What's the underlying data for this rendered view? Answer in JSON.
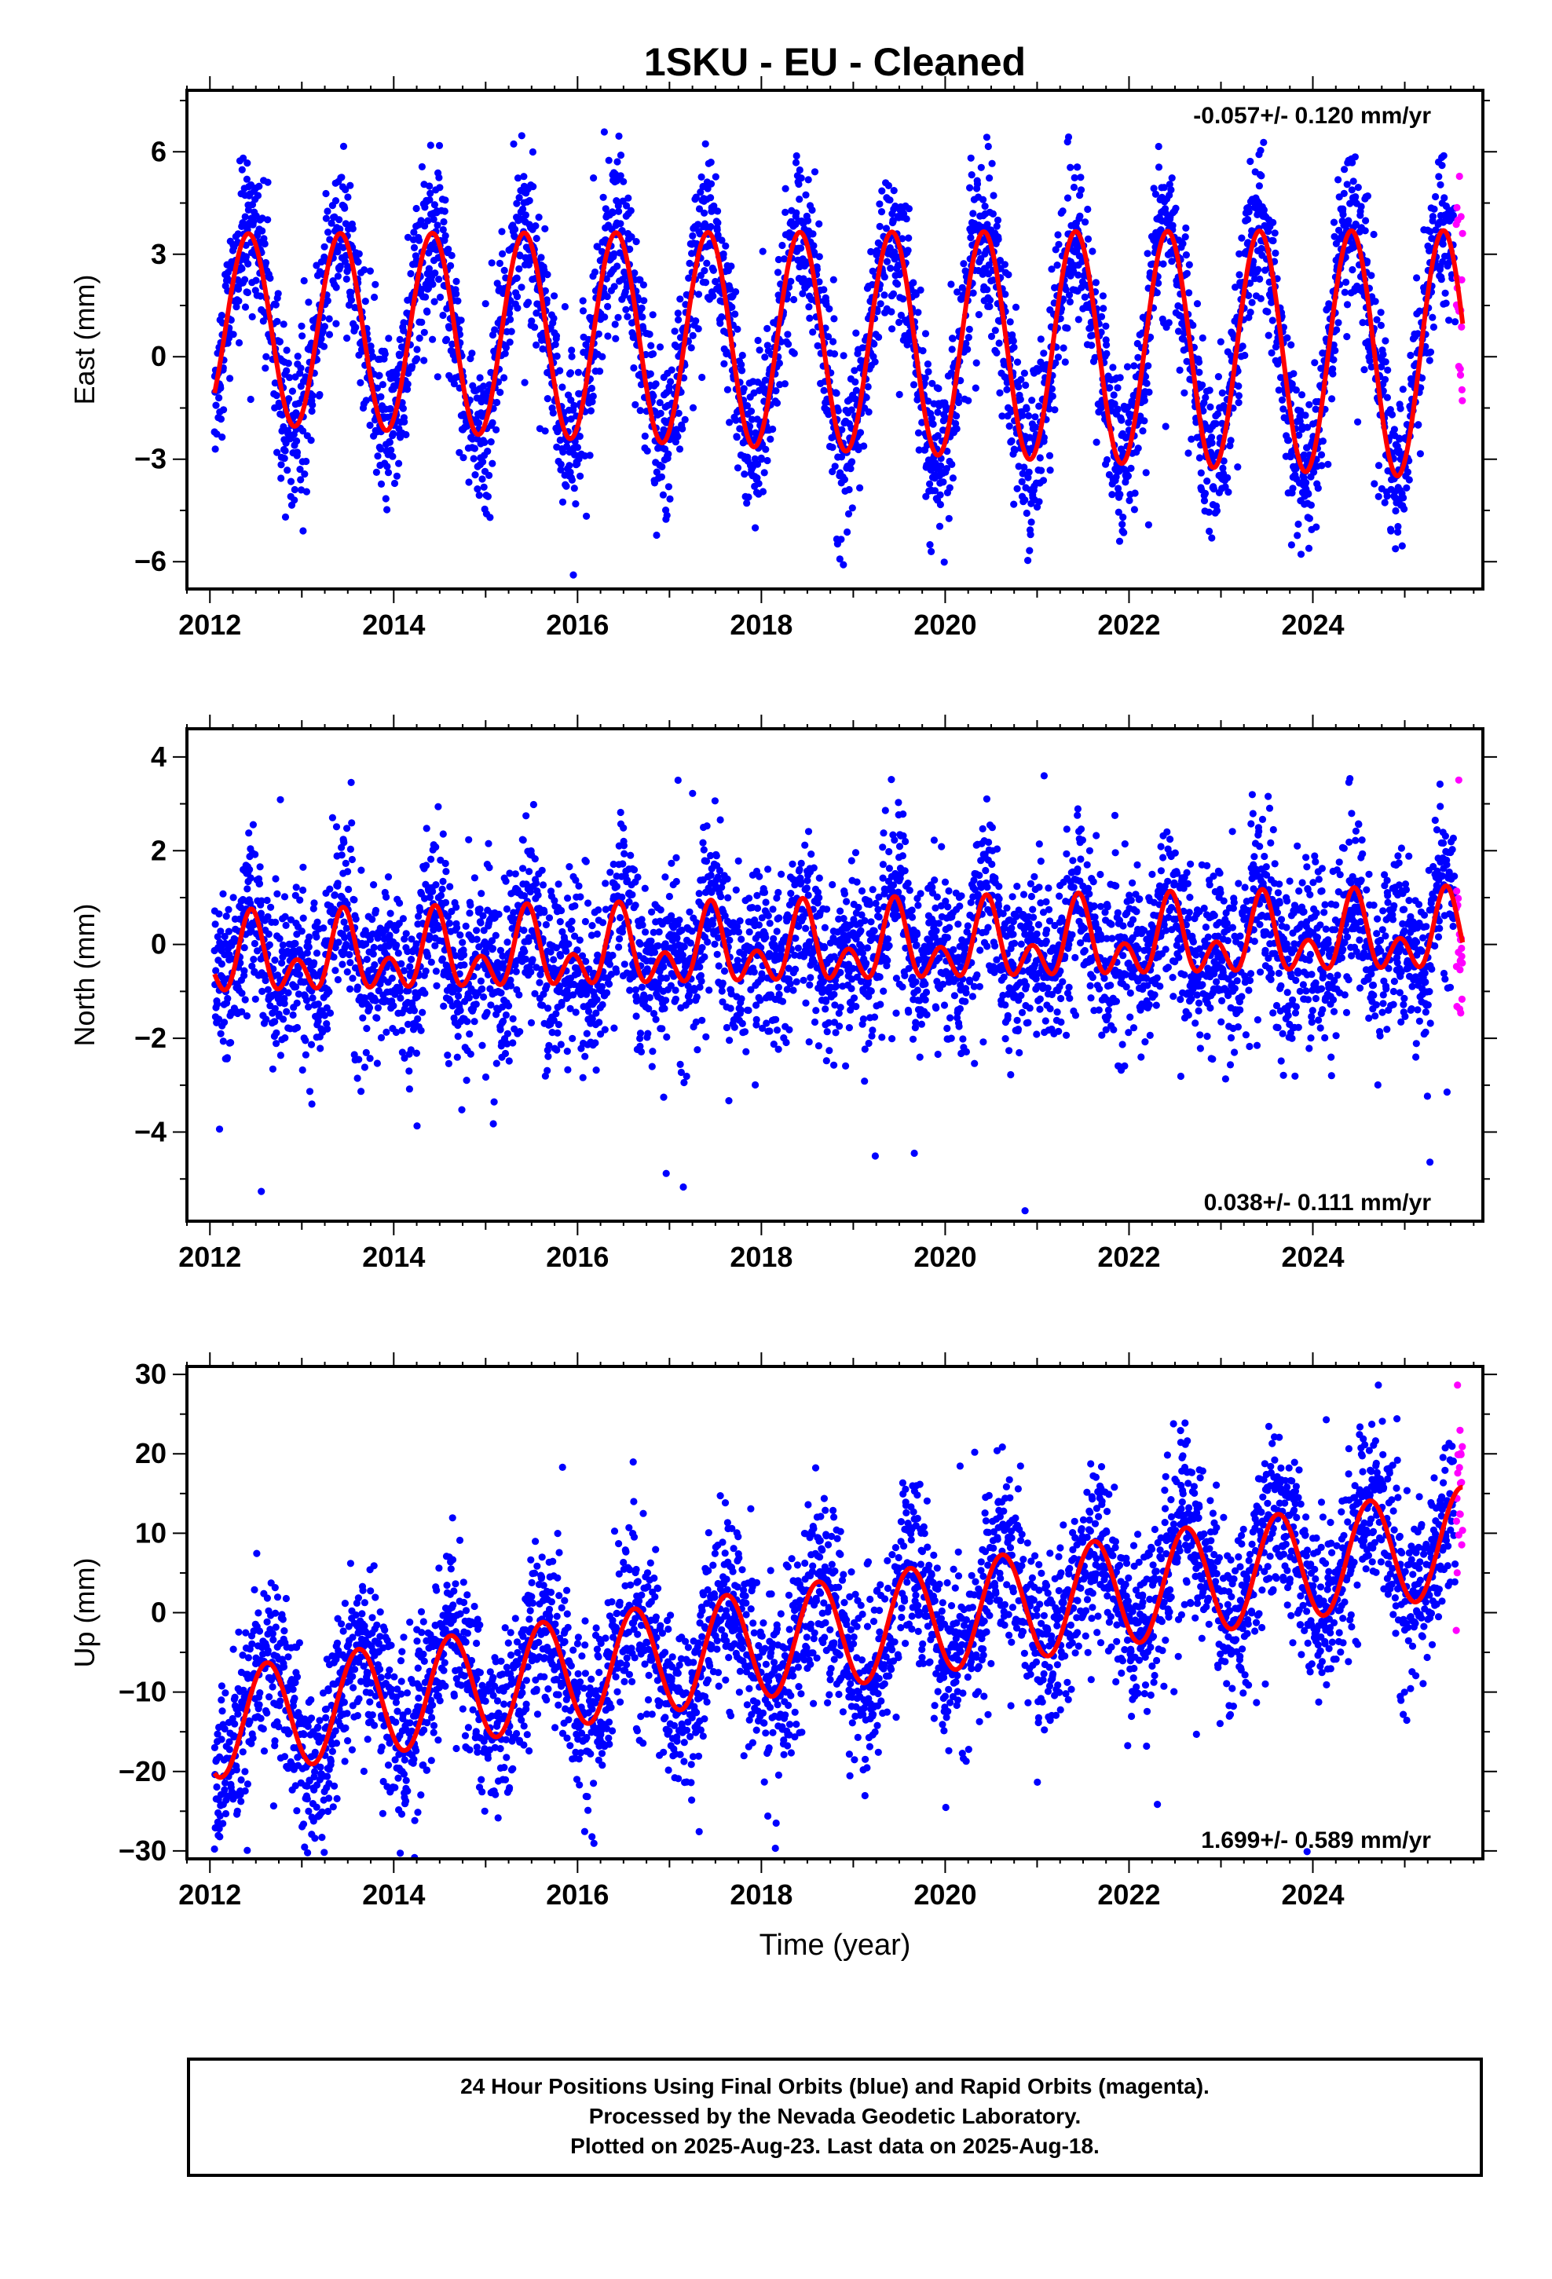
{
  "title": "1SKU  - EU - Cleaned",
  "colors": {
    "final": "#0000ff",
    "rapid": "#ff00ff",
    "model": "#ff0000",
    "axis": "#000000"
  },
  "chart_data": [
    {
      "type": "scatter",
      "id": "east",
      "ylabel": "East (mm)",
      "rate_text": "-0.057+/- 0.120 mm/yr",
      "rate_position": "top-right",
      "xlim": [
        2011.75,
        2025.85
      ],
      "ylim": [
        -6.8,
        7.8
      ],
      "xticks": [
        2012,
        2014,
        2016,
        2018,
        2020,
        2022,
        2024
      ],
      "xtick_labels": [
        "2012",
        "2014",
        "2016",
        "2018",
        "2020",
        "2022",
        "2024"
      ],
      "yticks": [
        -6,
        -3,
        0,
        3,
        6
      ],
      "ytick_labels": [
        "−6",
        "−3",
        "0",
        "3",
        "6"
      ],
      "data_start": 2012.05,
      "data_end": 2025.55,
      "rapid_start": 2025.56,
      "rapid_end": 2025.63,
      "model": {
        "offset": 0.45,
        "trend": -0.057,
        "annual_amp": 3.2,
        "annual_peak": 0.42,
        "semiannual_amp": 0.0,
        "semiannual_peak": 0.0,
        "amp_growth": 0.02,
        "ref_year": 2018.8
      },
      "scatter_sd": 1.1
    },
    {
      "type": "scatter",
      "id": "north",
      "ylabel": "North (mm)",
      "rate_text": "0.038+/- 0.111 mm/yr",
      "rate_position": "bottom-right",
      "xlim": [
        2011.75,
        2025.85
      ],
      "ylim": [
        -5.9,
        4.6
      ],
      "xticks": [
        2012,
        2014,
        2016,
        2018,
        2020,
        2022,
        2024
      ],
      "xtick_labels": [
        "2012",
        "2014",
        "2016",
        "2018",
        "2020",
        "2022",
        "2024"
      ],
      "yticks": [
        -4,
        -2,
        0,
        2,
        4
      ],
      "ytick_labels": [
        "−4",
        "−2",
        "0",
        "2",
        "4"
      ],
      "data_start": 2012.05,
      "data_end": 2025.55,
      "rapid_start": 2025.56,
      "rapid_end": 2025.63,
      "model": {
        "offset": -0.1,
        "trend": 0.038,
        "annual_amp": 0.55,
        "annual_peak": 0.45,
        "semiannual_amp": 0.55,
        "semiannual_peak": 0.45,
        "amp_growth": 0.0,
        "ref_year": 2018.8
      },
      "scatter_sd": 0.85
    },
    {
      "type": "scatter",
      "id": "up",
      "ylabel": "Up (mm)",
      "rate_text": "1.699+/- 0.589 mm/yr",
      "rate_position": "bottom-right",
      "xlim": [
        2011.75,
        2025.85
      ],
      "ylim": [
        -31,
        31
      ],
      "xticks": [
        2012,
        2014,
        2016,
        2018,
        2020,
        2022,
        2024
      ],
      "xtick_labels": [
        "2012",
        "2014",
        "2016",
        "2018",
        "2020",
        "2022",
        "2024"
      ],
      "yticks": [
        -30,
        -20,
        -10,
        0,
        10,
        20,
        30
      ],
      "ytick_labels": [
        "−30",
        "−20",
        "−10",
        "0",
        "10",
        "20",
        "30"
      ],
      "xlabel": "Time (year)",
      "data_start": 2012.05,
      "data_end": 2025.55,
      "rapid_start": 2025.56,
      "rapid_end": 2025.63,
      "model": {
        "offset": -2.6,
        "trend": 1.699,
        "annual_amp": 6.8,
        "annual_peak": 0.62,
        "semiannual_amp": 0.0,
        "semiannual_peak": 0.0,
        "amp_growth": 0.0,
        "ref_year": 2018.8
      },
      "scatter_sd": 5.2
    }
  ],
  "footer": {
    "line1": "24 Hour Positions Using Final Orbits (blue) and Rapid Orbits (magenta).",
    "line2": "Processed by the Nevada Geodetic Laboratory.",
    "line3": "Plotted on 2025-Aug-23. Last data on 2025-Aug-18."
  }
}
